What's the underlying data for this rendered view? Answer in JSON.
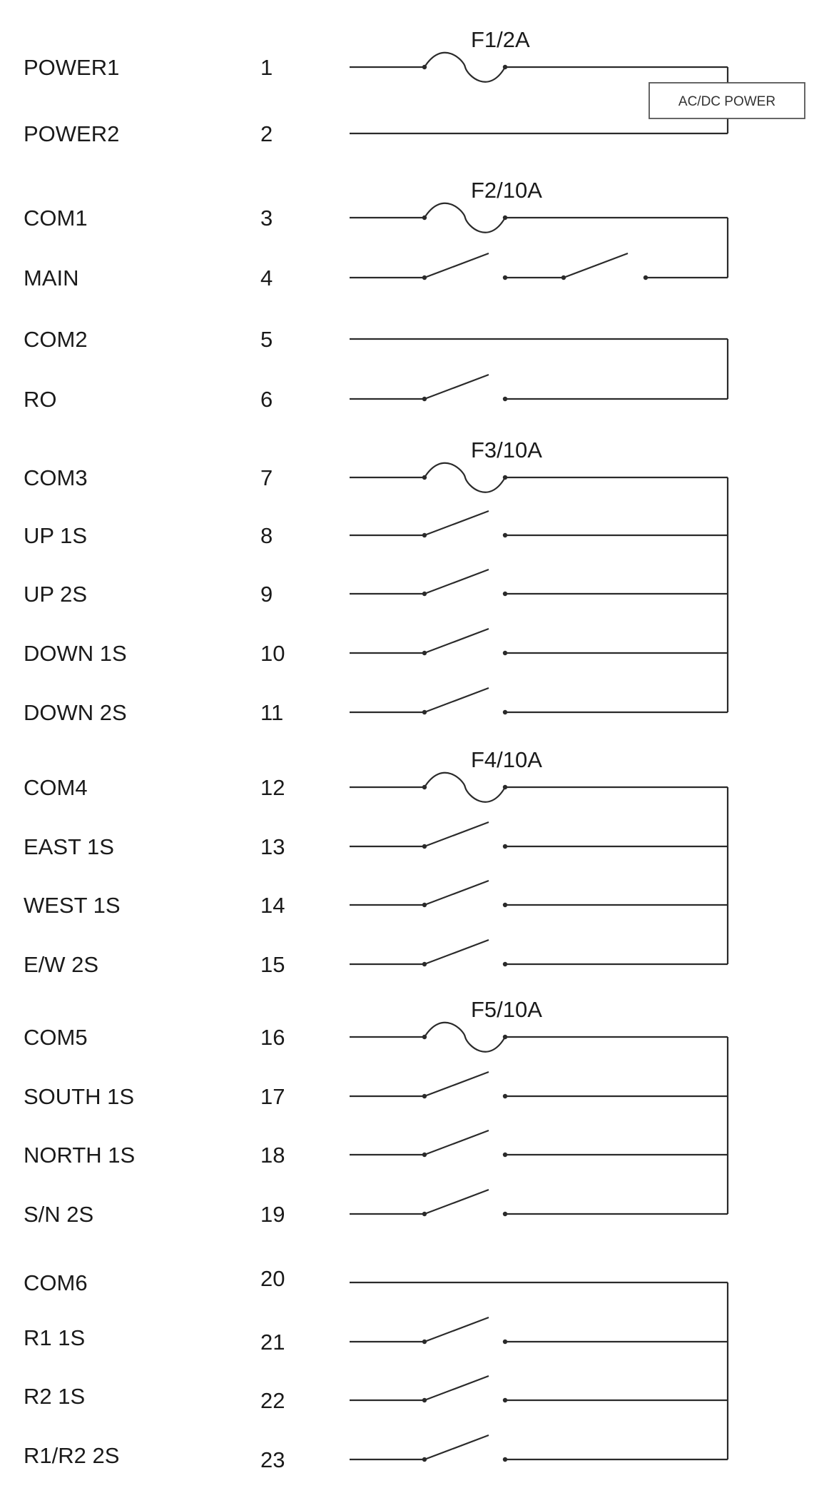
{
  "power_box": {
    "label": "AC/DC  POWER"
  },
  "terminals": [
    {
      "label": "POWER1",
      "number": "1"
    },
    {
      "label": "POWER2",
      "number": "2"
    },
    {
      "label": "COM1",
      "number": "3"
    },
    {
      "label": "MAIN",
      "number": "4"
    },
    {
      "label": "COM2",
      "number": "5"
    },
    {
      "label": "RO",
      "number": "6"
    },
    {
      "label": "COM3",
      "number": "7"
    },
    {
      "label": "UP  1S",
      "number": "8"
    },
    {
      "label": "UP  2S",
      "number": "9"
    },
    {
      "label": "DOWN 1S",
      "number": "10"
    },
    {
      "label": "DOWN 2S",
      "number": "11"
    },
    {
      "label": "COM4",
      "number": "12"
    },
    {
      "label": "EAST  1S",
      "number": "13"
    },
    {
      "label": "WEST  1S",
      "number": "14"
    },
    {
      "label": "E/W  2S",
      "number": "15"
    },
    {
      "label": "COM5",
      "number": "16"
    },
    {
      "label": "SOUTH 1S",
      "number": "17"
    },
    {
      "label": "NORTH 1S",
      "number": "18"
    },
    {
      "label": "S/N  2S",
      "number": "19"
    },
    {
      "label": "COM6",
      "number": "20"
    },
    {
      "label": "R1  1S",
      "number": "21"
    },
    {
      "label": "R2  1S",
      "number": "22"
    },
    {
      "label": "R1/R2  2S",
      "number": "23"
    }
  ],
  "fuses": [
    {
      "label": "F1/2A"
    },
    {
      "label": "F2/10A"
    },
    {
      "label": "F3/10A"
    },
    {
      "label": "F4/10A"
    },
    {
      "label": "F5/10A"
    }
  ]
}
